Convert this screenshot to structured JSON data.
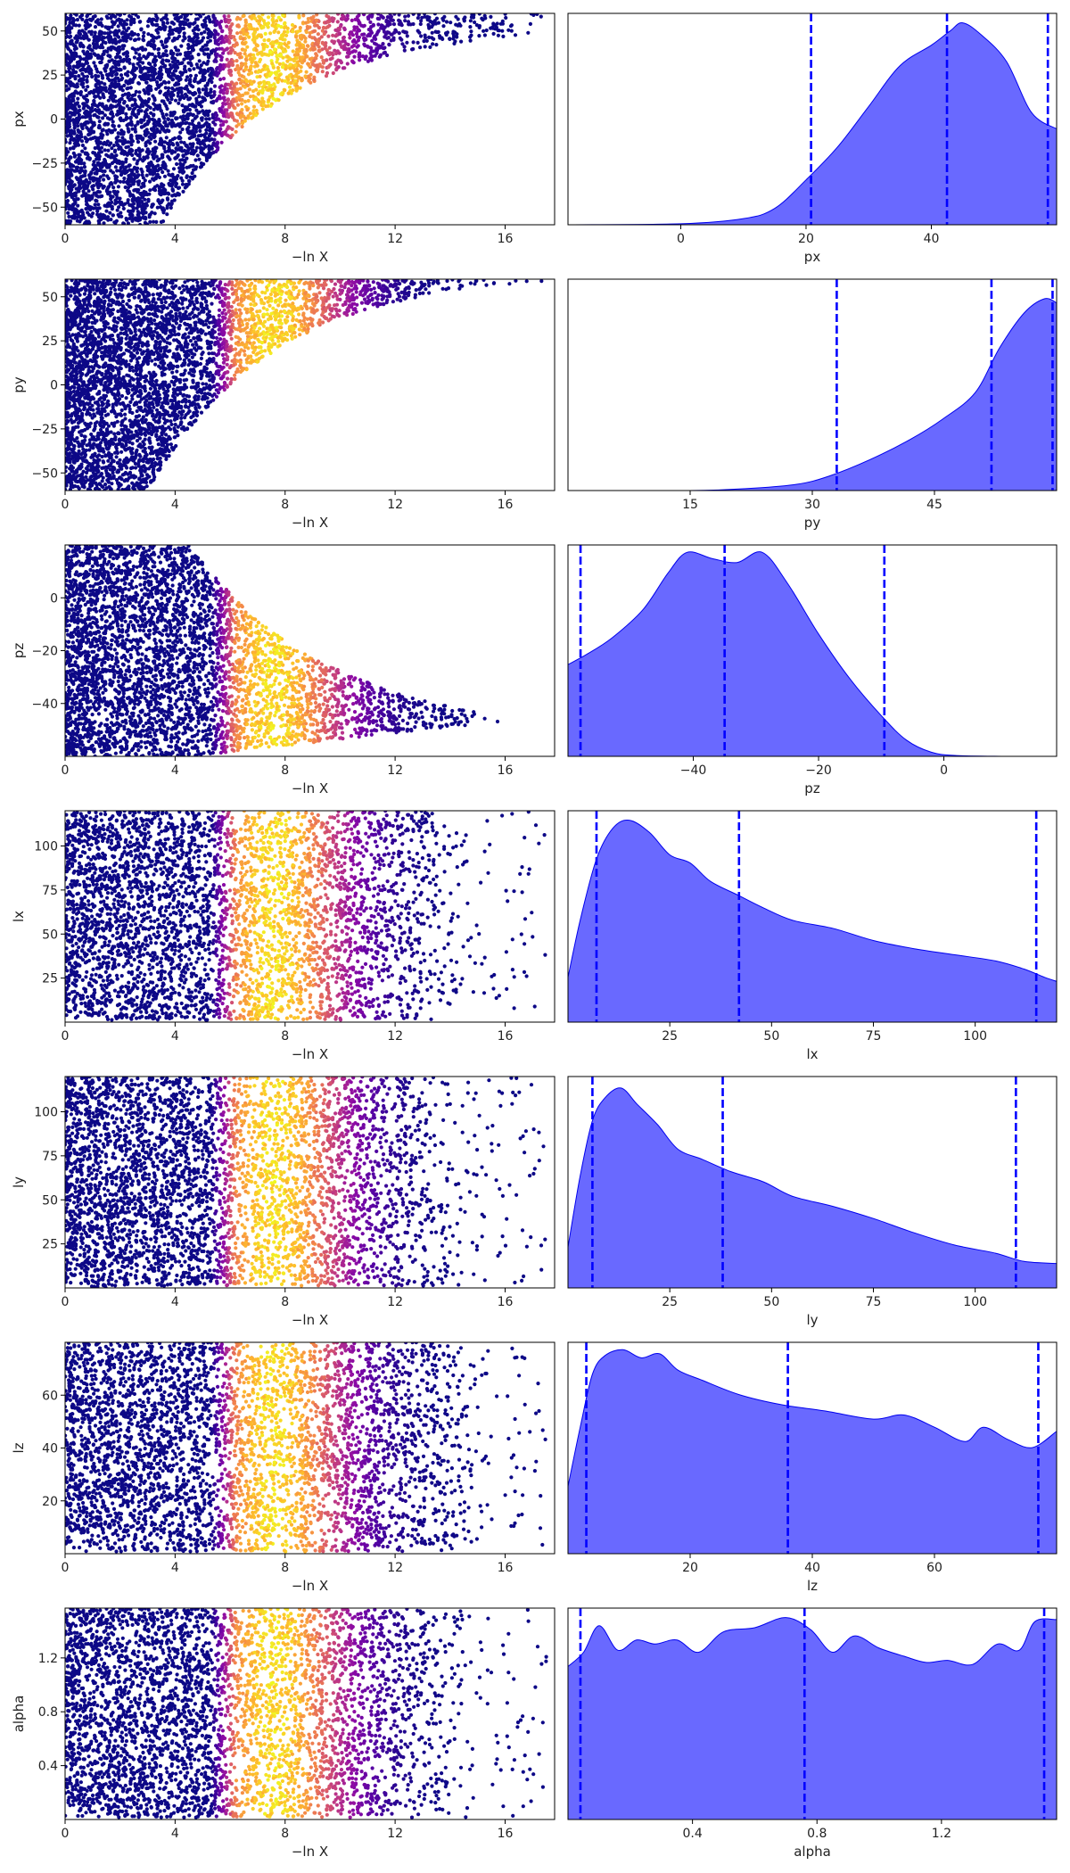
{
  "chart_data": {
    "type": "scatter",
    "layout": "7 rows x 2 columns; left: trace scatter of parameter vs -ln X colored by importance weight (plasma colormap); right: filled marginal posterior density with dashed quantile lines",
    "rows": [
      {
        "param": "px",
        "trace": {
          "xlabel": "−ln X",
          "ylabel": "px",
          "xlim": [
            0,
            17.8
          ],
          "ylim": [
            -60,
            60
          ],
          "xticks": [
            0,
            4,
            8,
            12,
            16
          ],
          "yticks": [
            -50,
            -25,
            0,
            25,
            50
          ],
          "envelope": {
            "shape": "rise",
            "low_start": -60,
            "low_end": 48,
            "growth": 0.22,
            "x_start": 3.5,
            "x_end": 17.5
          }
        },
        "posterior": {
          "xlabel": "px",
          "xlim": [
            -18,
            60
          ],
          "xticks": [
            0,
            20,
            40
          ],
          "dashed_lines": [
            20.8,
            42.5,
            58.6
          ],
          "density": [
            [
              -18,
              0.0
            ],
            [
              0,
              0.005
            ],
            [
              10,
              0.03
            ],
            [
              15,
              0.08
            ],
            [
              20,
              0.22
            ],
            [
              25,
              0.38
            ],
            [
              30,
              0.58
            ],
            [
              35,
              0.78
            ],
            [
              40,
              0.88
            ],
            [
              43,
              0.95
            ],
            [
              45,
              0.99
            ],
            [
              48,
              0.93
            ],
            [
              52,
              0.8
            ],
            [
              56,
              0.55
            ],
            [
              60,
              0.47
            ]
          ]
        }
      },
      {
        "param": "py",
        "trace": {
          "xlabel": "−ln X",
          "ylabel": "py",
          "xlim": [
            0,
            17.8
          ],
          "ylim": [
            -60,
            60
          ],
          "xticks": [
            0,
            4,
            8,
            12,
            16
          ],
          "yticks": [
            -50,
            -25,
            0,
            25,
            50
          ],
          "envelope": {
            "shape": "rise",
            "low_start": -60,
            "low_end": 59,
            "growth": 0.22,
            "x_start": 3,
            "x_end": 17.5
          }
        },
        "posterior": {
          "xlabel": "py",
          "xlim": [
            0,
            60
          ],
          "xticks": [
            15,
            30,
            45
          ],
          "dashed_lines": [
            33.0,
            52.0,
            59.5
          ],
          "density": [
            [
              0,
              0.0
            ],
            [
              15,
              0.0
            ],
            [
              22,
              0.01
            ],
            [
              28,
              0.03
            ],
            [
              32,
              0.07
            ],
            [
              37,
              0.15
            ],
            [
              42,
              0.25
            ],
            [
              46,
              0.35
            ],
            [
              50,
              0.48
            ],
            [
              53,
              0.7
            ],
            [
              56,
              0.87
            ],
            [
              58.5,
              0.94
            ],
            [
              60,
              0.92
            ]
          ]
        }
      },
      {
        "param": "pz",
        "trace": {
          "xlabel": "−ln X",
          "ylabel": "pz",
          "xlim": [
            0,
            17.8
          ],
          "ylim": [
            -60,
            20
          ],
          "xticks": [
            0,
            4,
            8,
            12,
            16
          ],
          "yticks": [
            -40,
            -20,
            0
          ],
          "envelope": {
            "shape": "funnel",
            "upper_start": 20,
            "upper_end": -47,
            "lower_start": -60,
            "lower_end": -45,
            "x_start": 4.5,
            "x_end": 17.5
          }
        },
        "posterior": {
          "xlabel": "pz",
          "xlim": [
            -60,
            18
          ],
          "xticks": [
            -40,
            -20,
            0
          ],
          "dashed_lines": [
            -58.0,
            -35.0,
            -9.5
          ],
          "density": [
            [
              -60,
              0.45
            ],
            [
              -57,
              0.5
            ],
            [
              -53,
              0.58
            ],
            [
              -48,
              0.72
            ],
            [
              -44,
              0.9
            ],
            [
              -41,
              1.0
            ],
            [
              -37,
              0.97
            ],
            [
              -33,
              0.95
            ],
            [
              -29,
              1.0
            ],
            [
              -25,
              0.85
            ],
            [
              -20,
              0.6
            ],
            [
              -15,
              0.38
            ],
            [
              -10,
              0.2
            ],
            [
              -6,
              0.08
            ],
            [
              -2,
              0.02
            ],
            [
              2,
              0.004
            ],
            [
              10,
              0.0
            ],
            [
              18,
              0.0
            ]
          ]
        }
      },
      {
        "param": "lx",
        "trace": {
          "xlabel": "−ln X",
          "ylabel": "lx",
          "xlim": [
            0,
            17.8
          ],
          "ylim": [
            0,
            120
          ],
          "xticks": [
            0,
            4,
            8,
            12,
            16
          ],
          "yticks": [
            25,
            50,
            75,
            100
          ],
          "envelope": {
            "shape": "band",
            "low": 2,
            "high": 120,
            "fade_start": 10,
            "x_end": 17.5
          }
        },
        "posterior": {
          "xlabel": "lx",
          "xlim": [
            0,
            120
          ],
          "xticks": [
            25,
            50,
            75,
            100
          ],
          "dashed_lines": [
            7,
            42,
            115
          ],
          "density": [
            [
              0,
              0.22
            ],
            [
              3,
              0.5
            ],
            [
              7,
              0.8
            ],
            [
              11,
              0.95
            ],
            [
              15,
              0.99
            ],
            [
              20,
              0.93
            ],
            [
              25,
              0.82
            ],
            [
              30,
              0.78
            ],
            [
              35,
              0.69
            ],
            [
              42,
              0.62
            ],
            [
              48,
              0.56
            ],
            [
              55,
              0.5
            ],
            [
              65,
              0.46
            ],
            [
              75,
              0.4
            ],
            [
              85,
              0.36
            ],
            [
              95,
              0.33
            ],
            [
              105,
              0.3
            ],
            [
              112,
              0.26
            ],
            [
              117,
              0.22
            ],
            [
              120,
              0.2
            ]
          ]
        }
      },
      {
        "param": "ly",
        "trace": {
          "xlabel": "−ln X",
          "ylabel": "ly",
          "xlim": [
            0,
            17.8
          ],
          "ylim": [
            0,
            120
          ],
          "xticks": [
            0,
            4,
            8,
            12,
            16
          ],
          "yticks": [
            25,
            50,
            75,
            100
          ],
          "envelope": {
            "shape": "band",
            "low": 2,
            "high": 120,
            "fade_start": 10,
            "x_end": 17.5
          }
        },
        "posterior": {
          "xlabel": "ly",
          "xlim": [
            0,
            120
          ],
          "xticks": [
            25,
            50,
            75,
            100
          ],
          "dashed_lines": [
            6,
            38,
            110
          ],
          "density": [
            [
              0,
              0.2
            ],
            [
              3,
              0.55
            ],
            [
              6,
              0.82
            ],
            [
              9,
              0.93
            ],
            [
              13,
              0.98
            ],
            [
              17,
              0.9
            ],
            [
              22,
              0.8
            ],
            [
              27,
              0.68
            ],
            [
              33,
              0.63
            ],
            [
              40,
              0.57
            ],
            [
              48,
              0.52
            ],
            [
              55,
              0.45
            ],
            [
              65,
              0.4
            ],
            [
              75,
              0.34
            ],
            [
              85,
              0.27
            ],
            [
              95,
              0.21
            ],
            [
              105,
              0.17
            ],
            [
              112,
              0.13
            ],
            [
              120,
              0.12
            ]
          ]
        }
      },
      {
        "param": "lz",
        "trace": {
          "xlabel": "−ln X",
          "ylabel": "lz",
          "xlim": [
            0,
            17.8
          ],
          "ylim": [
            0,
            80
          ],
          "xticks": [
            0,
            4,
            8,
            12,
            16
          ],
          "yticks": [
            20,
            40,
            60
          ],
          "envelope": {
            "shape": "band",
            "low": 1,
            "high": 80,
            "fade_start": 11,
            "x_end": 17.5
          }
        },
        "posterior": {
          "xlabel": "lz",
          "xlim": [
            0,
            80
          ],
          "xticks": [
            20,
            40,
            60
          ],
          "dashed_lines": [
            3,
            36,
            77
          ],
          "density": [
            [
              0,
              0.33
            ],
            [
              2,
              0.62
            ],
            [
              4,
              0.88
            ],
            [
              6,
              0.97
            ],
            [
              9,
              1.0
            ],
            [
              12,
              0.96
            ],
            [
              15,
              0.98
            ],
            [
              18,
              0.9
            ],
            [
              22,
              0.85
            ],
            [
              28,
              0.78
            ],
            [
              35,
              0.73
            ],
            [
              42,
              0.7
            ],
            [
              50,
              0.66
            ],
            [
              55,
              0.68
            ],
            [
              60,
              0.62
            ],
            [
              65,
              0.55
            ],
            [
              68,
              0.62
            ],
            [
              72,
              0.56
            ],
            [
              76,
              0.52
            ],
            [
              80,
              0.6
            ]
          ]
        }
      },
      {
        "param": "alpha",
        "trace": {
          "xlabel": "−ln X",
          "ylabel": "alpha",
          "xlim": [
            0,
            17.8
          ],
          "ylim": [
            0,
            1.57
          ],
          "xticks": [
            0,
            4,
            8,
            12,
            16
          ],
          "yticks": [
            0.4,
            0.8,
            1.2
          ],
          "envelope": {
            "shape": "band",
            "low": 0,
            "high": 1.57,
            "fade_start": 10,
            "x_end": 17.5
          }
        },
        "posterior": {
          "xlabel": "alpha",
          "xlim": [
            0,
            1.57
          ],
          "xticks": [
            0.4,
            0.8,
            1.2
          ],
          "dashed_lines": [
            0.04,
            0.76,
            1.53
          ],
          "density": [
            [
              0,
              0.75
            ],
            [
              0.05,
              0.82
            ],
            [
              0.1,
              0.95
            ],
            [
              0.16,
              0.83
            ],
            [
              0.22,
              0.88
            ],
            [
              0.28,
              0.86
            ],
            [
              0.35,
              0.88
            ],
            [
              0.42,
              0.82
            ],
            [
              0.5,
              0.92
            ],
            [
              0.6,
              0.94
            ],
            [
              0.7,
              0.99
            ],
            [
              0.78,
              0.93
            ],
            [
              0.85,
              0.82
            ],
            [
              0.92,
              0.9
            ],
            [
              1.0,
              0.84
            ],
            [
              1.08,
              0.8
            ],
            [
              1.15,
              0.77
            ],
            [
              1.22,
              0.78
            ],
            [
              1.3,
              0.76
            ],
            [
              1.38,
              0.86
            ],
            [
              1.45,
              0.83
            ],
            [
              1.5,
              0.97
            ],
            [
              1.57,
              0.98
            ]
          ]
        }
      }
    ],
    "scatter_colormap": "plasma",
    "posterior_fill": "#6666ff",
    "posterior_line": "#0000ee",
    "quantile_line_color": "#0000ff"
  }
}
